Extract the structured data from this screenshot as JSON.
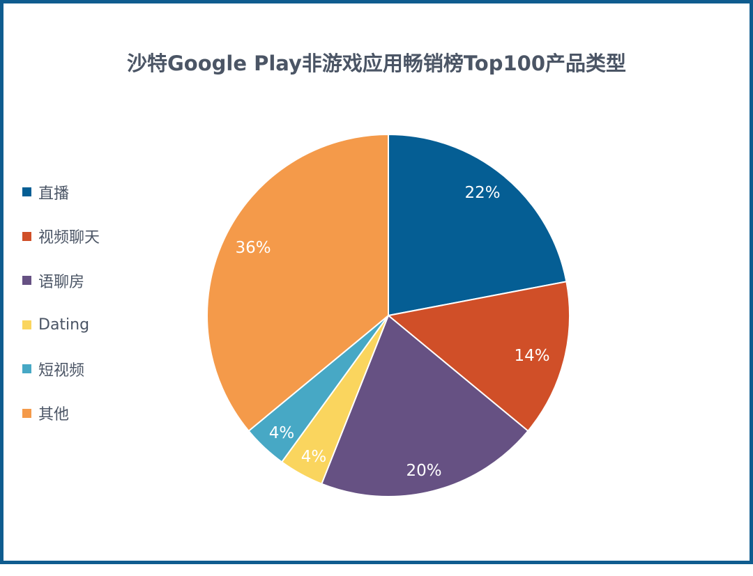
{
  "chart_data": {
    "type": "pie",
    "title": "沙特Google Play非游戏应用畅销榜Top100产品类型",
    "categories": [
      "直播",
      "视频聊天",
      "语聊房",
      "Dating",
      "短视频",
      "其他"
    ],
    "values": [
      22,
      14,
      20,
      4,
      4,
      36
    ],
    "unit": "%",
    "colors": [
      "#055E94",
      "#D04F28",
      "#665183",
      "#FAD55E",
      "#47A8C5",
      "#F49A4A"
    ],
    "data_labels": [
      "22%",
      "14%",
      "20%",
      "4%",
      "4%",
      "36%"
    ],
    "legend_position": "left",
    "start_angle": "12 o'clock, clockwise"
  },
  "title": "沙特Google Play非游戏应用畅销榜Top100产品类型",
  "legend": [
    {
      "label": "直播",
      "color": "#055E94"
    },
    {
      "label": "视频聊天",
      "color": "#D04F28"
    },
    {
      "label": "语聊房",
      "color": "#665183"
    },
    {
      "label": "Dating",
      "color": "#FAD55E"
    },
    {
      "label": "短视频",
      "color": "#47A8C5"
    },
    {
      "label": "其他",
      "color": "#F49A4A"
    }
  ],
  "labels": {
    "live": "22%",
    "video_chat": "14%",
    "voice_room": "20%",
    "dating": "4%",
    "short_video": "4%",
    "other": "36%"
  }
}
